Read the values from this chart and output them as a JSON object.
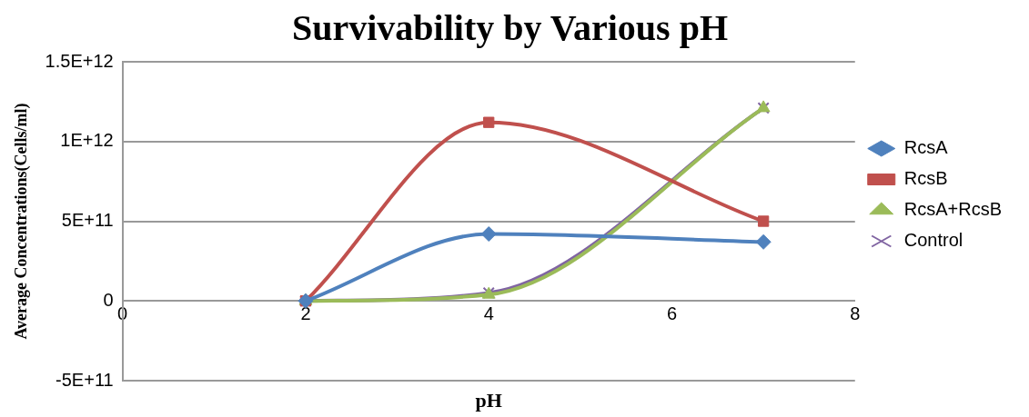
{
  "chart_data": {
    "type": "line",
    "title": "Survivability by Various pH",
    "xlabel": "pH",
    "ylabel": "Average Concentrations(Cells/ml)",
    "x": [
      2,
      4,
      7
    ],
    "xlim": [
      0,
      8
    ],
    "xticks": [
      0,
      2,
      4,
      6,
      8
    ],
    "ylim": [
      -500000000000,
      1500000000000
    ],
    "yticks": [
      {
        "value": -500000000000,
        "label": "-5E+11"
      },
      {
        "value": 0,
        "label": "0"
      },
      {
        "value": 500000000000,
        "label": "5E+11"
      },
      {
        "value": 1000000000000,
        "label": "1E+12"
      },
      {
        "value": 1500000000000,
        "label": "1.5E+12"
      }
    ],
    "grid": "y",
    "legend": "right",
    "series": [
      {
        "name": "RcsA",
        "color": "#4f81bd",
        "marker": "diamond",
        "values": [
          0,
          420000000000,
          370000000000
        ]
      },
      {
        "name": "RcsB",
        "color": "#c0504d",
        "marker": "square",
        "values": [
          0,
          1120000000000,
          500000000000
        ]
      },
      {
        "name": "RcsA+RcsB",
        "color": "#9bbb59",
        "marker": "triangle",
        "values": [
          0,
          40000000000,
          1210000000000
        ]
      },
      {
        "name": "Control",
        "color": "#8064a2",
        "marker": "cross",
        "values": [
          0,
          50000000000,
          1210000000000
        ]
      }
    ]
  }
}
